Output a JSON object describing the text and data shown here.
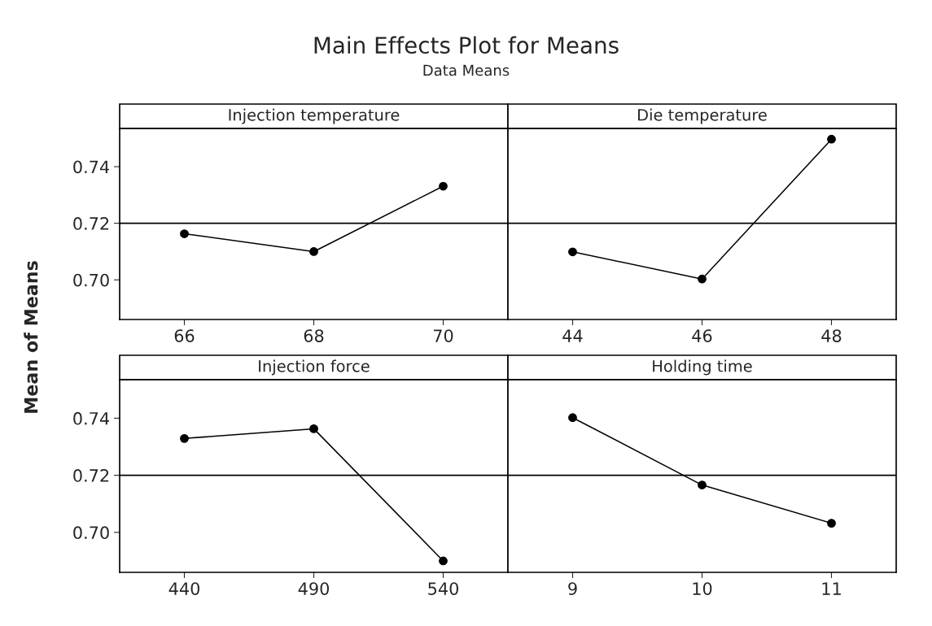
{
  "chart_data": [
    {
      "type": "line",
      "annotations": [
        "Main Effects Plot for Means",
        "Data Means"
      ],
      "ylabel": "Mean of Means",
      "title": "Injection temperature",
      "categories": [
        "66",
        "68",
        "70"
      ],
      "series": [
        {
          "color": "#000000",
          "values": [
            0.7163,
            0.71,
            0.7331
          ]
        }
      ],
      "ylim": [
        0.686,
        0.7535
      ],
      "yticks": [
        {
          "value": 0.7,
          "label": "0.70"
        },
        {
          "value": 0.72,
          "label": "0.72"
        },
        {
          "value": 0.74,
          "label": "0.74"
        }
      ],
      "ref_lines": [
        {
          "axis": "y",
          "value": 0.72,
          "color": "#000000"
        }
      ],
      "marker": "circle",
      "grid": false,
      "legend": false
    },
    {
      "type": "line",
      "title": "Die temperature",
      "categories": [
        "44",
        "46",
        "48"
      ],
      "series": [
        {
          "color": "#000000",
          "values": [
            0.7099,
            0.7003,
            0.7497
          ]
        }
      ],
      "ylim": [
        0.686,
        0.7535
      ],
      "ref_lines": [
        {
          "axis": "y",
          "value": 0.72,
          "color": "#000000"
        }
      ],
      "marker": "circle",
      "grid": false,
      "legend": false,
      "tick_labels": "x"
    },
    {
      "type": "line",
      "title": "Injection force",
      "categories": [
        "440",
        "490",
        "540"
      ],
      "series": [
        {
          "color": "#000000",
          "values": [
            0.7329,
            0.7363,
            0.69
          ]
        }
      ],
      "ylim": [
        0.686,
        0.7535
      ],
      "yticks": [
        {
          "value": 0.7,
          "label": "0.70"
        },
        {
          "value": 0.72,
          "label": "0.72"
        },
        {
          "value": 0.74,
          "label": "0.74"
        }
      ],
      "ref_lines": [
        {
          "axis": "y",
          "value": 0.72,
          "color": "#000000"
        }
      ],
      "marker": "circle",
      "grid": false,
      "legend": false
    },
    {
      "type": "line",
      "title": "Holding time",
      "categories": [
        "9",
        "10",
        "11"
      ],
      "series": [
        {
          "color": "#000000",
          "values": [
            0.7402,
            0.7166,
            0.7032
          ]
        }
      ],
      "ylim": [
        0.686,
        0.7535
      ],
      "ref_lines": [
        {
          "axis": "y",
          "value": 0.72,
          "color": "#000000"
        }
      ],
      "marker": "circle",
      "grid": false,
      "legend": false,
      "tick_labels": "x"
    }
  ]
}
